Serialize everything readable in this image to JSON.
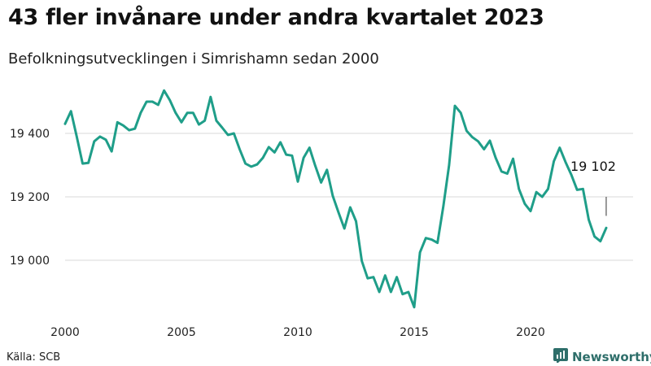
{
  "title": "43 fler invånare under andra kvartalet 2023",
  "subtitle": "Befolkningsutvecklingen i Simrishamn sedan 2000",
  "source": "Källa: SCB",
  "brand": {
    "name": "Newsworthy",
    "color": "#2e6e6a"
  },
  "chart_data": {
    "type": "line",
    "title": "43 fler invånare under andra kvartalet 2023",
    "subtitle": "Befolkningsutvecklingen i Simrishamn sedan 2000",
    "ylim": [
      18840,
      19560
    ],
    "yticks": [
      19000,
      19200,
      19400
    ],
    "ytick_labels": [
      "19 000",
      "19 200",
      "19 400"
    ],
    "xlim": [
      2000,
      2024
    ],
    "xticks": [
      2000,
      2005,
      2010,
      2015,
      2020
    ],
    "xtick_labels": [
      "2000",
      "2005",
      "2010",
      "2015",
      "2020"
    ],
    "grid": "horizontal",
    "line_color": "#1f9e89",
    "annotation": {
      "text": "19 102",
      "x": 2023.25,
      "y": 19102
    },
    "series": [
      {
        "x": [
          2000.0,
          2000.25,
          2000.5,
          2000.75,
          2001.0,
          2001.25,
          2001.5,
          2001.75,
          2002.0,
          2002.25,
          2002.5,
          2002.75,
          2003.0,
          2003.25,
          2003.5,
          2003.75,
          2004.0,
          2004.25,
          2004.5,
          2004.75,
          2005.0,
          2005.25,
          2005.5,
          2005.75,
          2006.0,
          2006.25,
          2006.5,
          2006.75,
          2007.0,
          2007.25,
          2007.5,
          2007.75,
          2008.0,
          2008.25,
          2008.5,
          2008.75,
          2009.0,
          2009.25,
          2009.5,
          2009.75,
          2010.0,
          2010.25,
          2010.5,
          2010.75,
          2011.0,
          2011.25,
          2011.5,
          2011.75,
          2012.0,
          2012.25,
          2012.5,
          2012.75,
          2013.0,
          2013.25,
          2013.5,
          2013.75,
          2014.0,
          2014.25,
          2014.5,
          2014.75,
          2015.0,
          2015.25,
          2015.5,
          2015.75,
          2016.0,
          2016.25,
          2016.5,
          2016.75,
          2017.0,
          2017.25,
          2017.5,
          2017.75,
          2018.0,
          2018.25,
          2018.5,
          2018.75,
          2019.0,
          2019.25,
          2019.5,
          2019.75,
          2020.0,
          2020.25,
          2020.5,
          2020.75,
          2021.0,
          2021.25,
          2021.5,
          2021.75,
          2022.0,
          2022.25,
          2022.5,
          2022.75,
          2023.0,
          2023.25
        ],
        "y": [
          19430,
          19470,
          19390,
          19305,
          19307,
          19375,
          19390,
          19380,
          19343,
          19435,
          19425,
          19410,
          19415,
          19465,
          19500,
          19500,
          19490,
          19535,
          19505,
          19465,
          19435,
          19465,
          19465,
          19428,
          19440,
          19515,
          19440,
          19418,
          19395,
          19400,
          19350,
          19305,
          19295,
          19302,
          19323,
          19357,
          19340,
          19372,
          19333,
          19330,
          19248,
          19323,
          19355,
          19298,
          19245,
          19285,
          19203,
          19150,
          19100,
          19167,
          19123,
          18998,
          18943,
          18947,
          18900,
          18952,
          18900,
          18947,
          18893,
          18900,
          18852,
          19025,
          19070,
          19065,
          19055,
          19170,
          19300,
          19487,
          19465,
          19408,
          19388,
          19375,
          19350,
          19377,
          19323,
          19280,
          19273,
          19320,
          19225,
          19178,
          19155,
          19215,
          19200,
          19225,
          19312,
          19355,
          19310,
          19270,
          19222,
          19225,
          19128,
          19075,
          19060,
          19102
        ]
      }
    ]
  }
}
